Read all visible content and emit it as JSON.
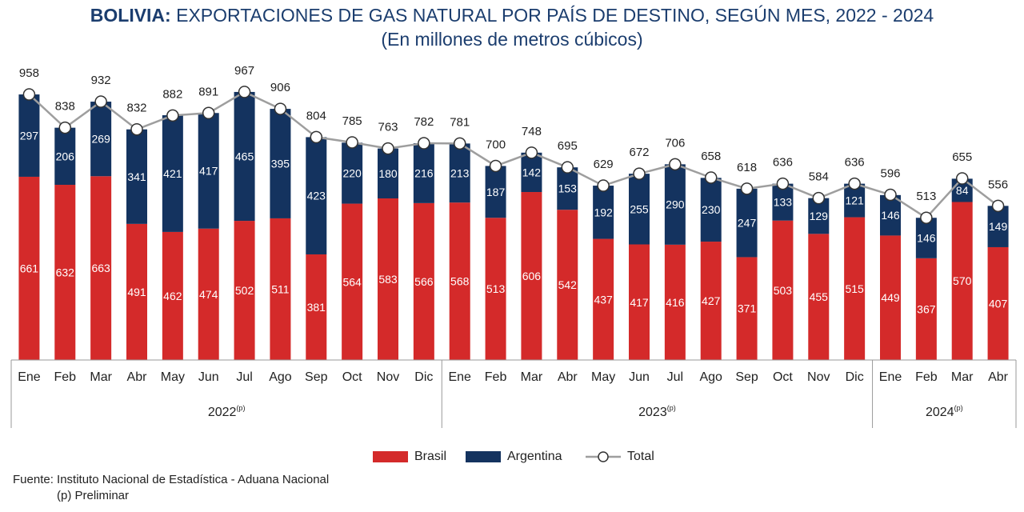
{
  "header": {
    "title_bold": "BOLIVIA:",
    "title_rest": " EXPORTACIONES DE GAS NATURAL POR PAÍS DE DESTINO, SEGÚN MES, 2022 - 2024",
    "subtitle": "(En millones de metros cúbicos)"
  },
  "legend": {
    "brasil": "Brasil",
    "argentina": "Argentina",
    "total": "Total"
  },
  "source": {
    "line1": "Fuente: Instituto Nacional de Estadística - Aduana Nacional",
    "line2": "(p) Preliminar"
  },
  "colors": {
    "brasil": "#d42a2a",
    "argentina": "#14335f",
    "total_line": "#9e9e9e",
    "title": "#1b3d6e"
  },
  "chart_data": {
    "type": "bar",
    "stacked": true,
    "categories": [
      "Ene",
      "Feb",
      "Mar",
      "Abr",
      "May",
      "Jun",
      "Jul",
      "Ago",
      "Sep",
      "Oct",
      "Nov",
      "Dic",
      "Ene",
      "Feb",
      "Mar",
      "Abr",
      "May",
      "Jun",
      "Jul",
      "Ago",
      "Sep",
      "Oct",
      "Nov",
      "Dic",
      "Ene",
      "Feb",
      "Mar",
      "Abr"
    ],
    "year_groups": [
      {
        "label": "2022",
        "sup": "(p)",
        "count": 12
      },
      {
        "label": "2023",
        "sup": "(p)",
        "count": 12
      },
      {
        "label": "2024",
        "sup": "(p)",
        "count": 4
      }
    ],
    "series": [
      {
        "name": "Brasil",
        "values": [
          661,
          632,
          663,
          491,
          462,
          474,
          502,
          511,
          381,
          564,
          583,
          566,
          568,
          513,
          606,
          542,
          437,
          417,
          416,
          427,
          371,
          503,
          455,
          515,
          449,
          367,
          570,
          407
        ]
      },
      {
        "name": "Argentina",
        "values": [
          297,
          206,
          269,
          341,
          421,
          417,
          465,
          395,
          423,
          220,
          180,
          216,
          213,
          187,
          142,
          153,
          192,
          255,
          290,
          230,
          247,
          133,
          129,
          121,
          146,
          146,
          84,
          149
        ]
      }
    ],
    "total": {
      "name": "Total",
      "values": [
        958,
        838,
        932,
        832,
        882,
        891,
        967,
        906,
        804,
        785,
        763,
        782,
        781,
        700,
        748,
        695,
        629,
        672,
        706,
        658,
        618,
        636,
        584,
        636,
        596,
        513,
        655,
        556
      ]
    },
    "legend_position": "bottom",
    "grid": false
  }
}
